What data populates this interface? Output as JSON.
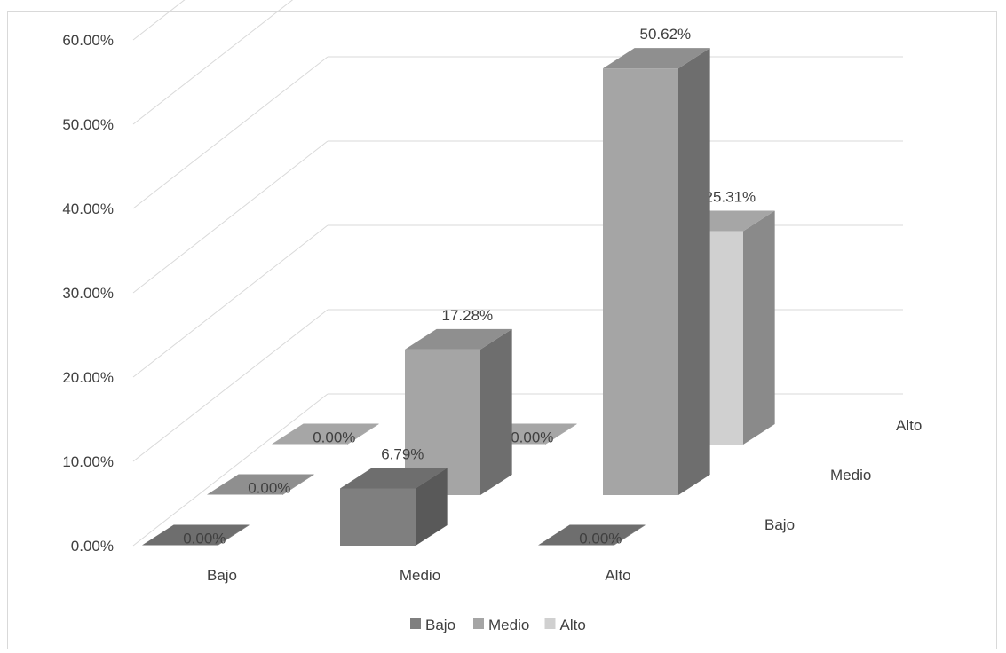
{
  "chart_data": {
    "type": "bar",
    "subtype": "3d-clustered",
    "categories": [
      "Bajo",
      "Medio",
      "Alto"
    ],
    "series": [
      {
        "name": "Bajo",
        "values": [
          0.0,
          6.79,
          0.0
        ],
        "labels": [
          "0.00%",
          "6.79%",
          "0.00%"
        ]
      },
      {
        "name": "Medio",
        "values": [
          0.0,
          17.28,
          50.62
        ],
        "labels": [
          "0.00%",
          "17.28%",
          "50.62%"
        ]
      },
      {
        "name": "Alto",
        "values": [
          0.0,
          0.0,
          25.31
        ],
        "labels": [
          "0.00%",
          "0.00%",
          "25.31%"
        ]
      }
    ],
    "y_ticks": [
      "0.00%",
      "10.00%",
      "20.00%",
      "30.00%",
      "40.00%",
      "50.00%",
      "60.00%"
    ],
    "ylim": [
      0,
      60
    ],
    "grid": true,
    "legend_position": "bottom",
    "colors": {
      "Bajo": {
        "front": "#7f7f7f",
        "top": "#6e6e6e",
        "side": "#595959"
      },
      "Medio": {
        "front": "#a5a5a5",
        "top": "#8f8f8f",
        "side": "#6e6e6e"
      },
      "Alto": {
        "front": "#d0d0d0",
        "top": "#a6a6a6",
        "side": "#8a8a8a"
      }
    }
  }
}
